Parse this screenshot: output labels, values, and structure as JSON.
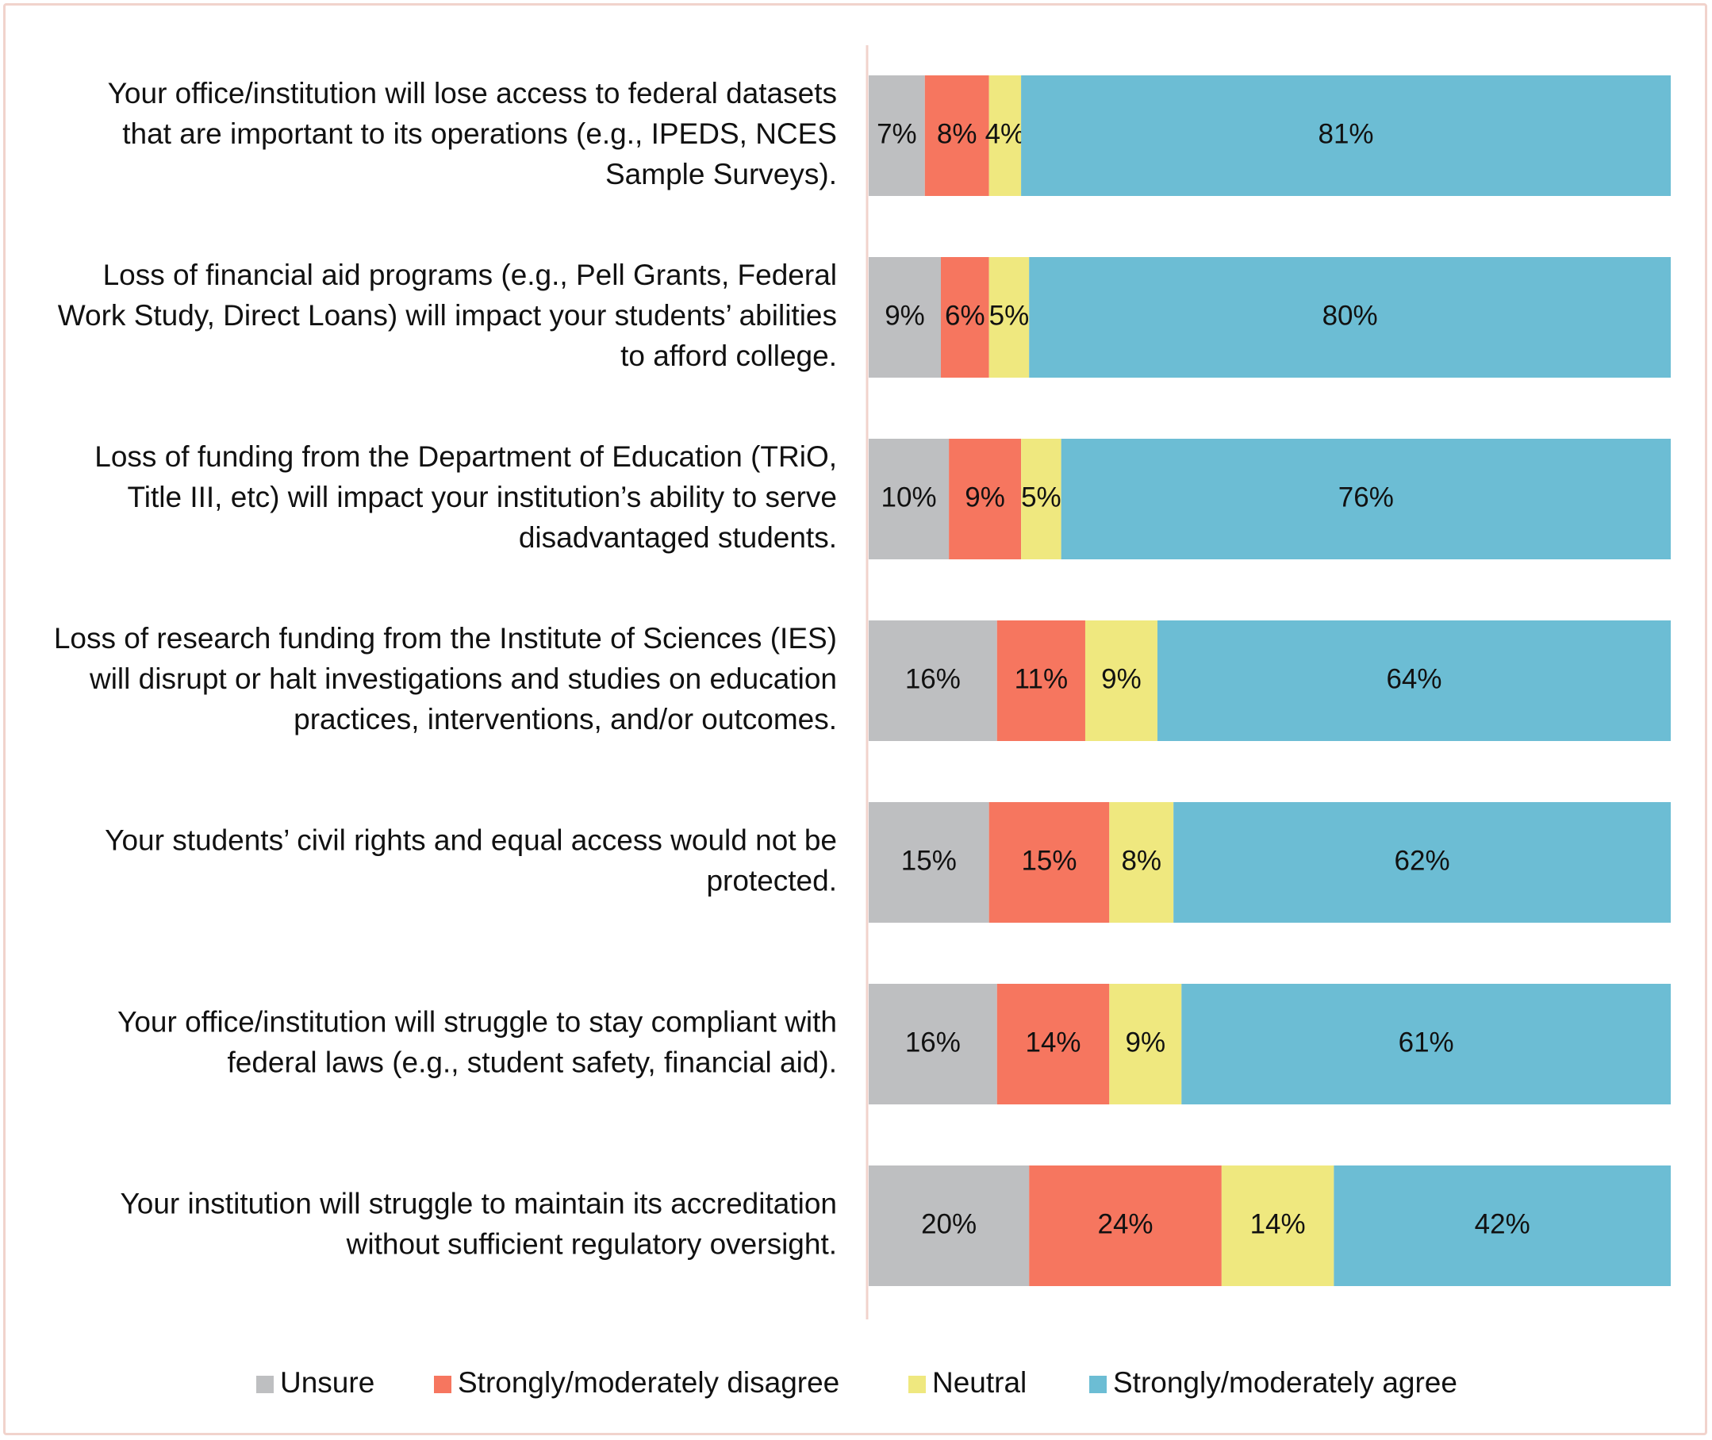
{
  "chart_data": {
    "type": "bar",
    "orientation": "horizontal",
    "stacked": true,
    "categories": [
      [
        "Your office/institution will lose access to federal datasets",
        "that are important to its operations (e.g., IPEDS, NCES",
        "Sample Surveys)."
      ],
      [
        "Loss of financial aid programs (e.g., Pell Grants, Federal",
        "Work Study, Direct Loans) will impact your students’ abilities",
        "to afford college."
      ],
      [
        "Loss of funding from the Department of Education (TRiO,",
        "Title III, etc) will impact your institution’s ability to serve",
        "disadvantaged students."
      ],
      [
        "Loss of research funding from the Institute of Sciences (IES)",
        "will disrupt or halt investigations and studies on education",
        "practices, interventions, and/or outcomes."
      ],
      [
        "Your students’ civil rights and equal access would not be",
        "protected."
      ],
      [
        "Your office/institution will struggle to stay compliant with",
        "federal laws (e.g., student safety, financial aid)."
      ],
      [
        "Your institution will struggle to maintain its accreditation",
        "without sufficient regulatory oversight."
      ]
    ],
    "series": [
      {
        "name": "Unsure",
        "color": "#bebfc1",
        "values": [
          7,
          9,
          10,
          16,
          15,
          16,
          20
        ],
        "labels": [
          "7%",
          "9%",
          "10%",
          "16%",
          "15%",
          "16%",
          "20%"
        ]
      },
      {
        "name": "Strongly/moderately disagree",
        "color": "#f6765f",
        "values": [
          8,
          6,
          9,
          11,
          15,
          14,
          24
        ],
        "labels": [
          "8%",
          "6%",
          "9%",
          "11%",
          "15%",
          "14%",
          "24%"
        ]
      },
      {
        "name": "Neutral",
        "color": "#efe87f",
        "values": [
          4,
          5,
          5,
          9,
          8,
          9,
          14
        ],
        "labels": [
          "4%",
          "5%",
          "5%",
          "9%",
          "8%",
          "9%",
          "14%"
        ]
      },
      {
        "name": "Strongly/moderately agree",
        "color": "#6cbdd4",
        "values": [
          81,
          80,
          76,
          64,
          62,
          61,
          42
        ],
        "labels": [
          "81%",
          "80%",
          "76%",
          "64%",
          "62%",
          "61%",
          "42%"
        ]
      }
    ],
    "xlim": [
      0,
      100
    ],
    "axis_color": "#f1d3cc",
    "legend_position": "bottom"
  }
}
